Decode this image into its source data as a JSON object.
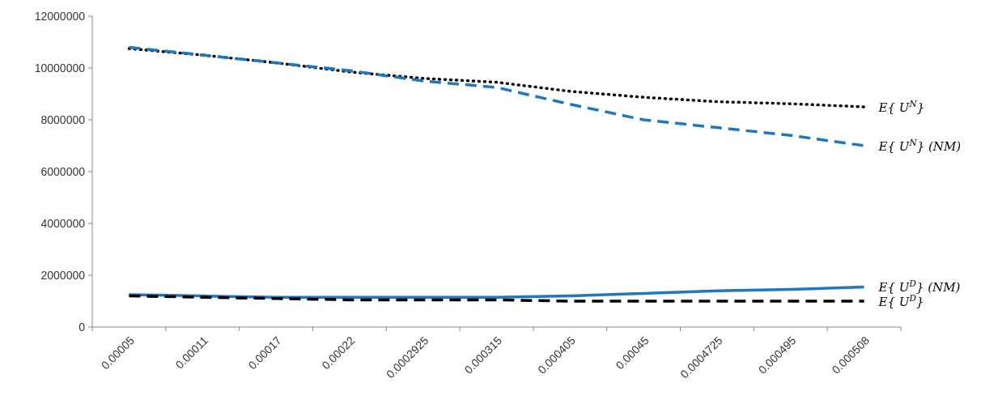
{
  "chart_data": {
    "type": "line",
    "categories": [
      "0.00005",
      "0.00011",
      "0.00017",
      "0.00022",
      "0.0002925",
      "0.000315",
      "0.000405",
      "0.00045",
      "0.0004725",
      "0.000495",
      "0.000508"
    ],
    "ylim": [
      0,
      12000000
    ],
    "yticks": [
      0,
      2000000,
      4000000,
      6000000,
      8000000,
      10000000,
      12000000
    ],
    "grid": false,
    "legend": false,
    "series": [
      {
        "name": "E{ U$^{N}$}",
        "color": "#000000",
        "line_style": "dotted",
        "values": [
          10750000,
          10500000,
          10200000,
          9850000,
          9600000,
          9450000,
          9100000,
          8870000,
          8700000,
          8620000,
          8500000
        ]
      },
      {
        "name": "E{ U$^{N}$} (NM)",
        "color": "#1f77c0",
        "line_style": "dashed",
        "values": [
          10800000,
          10500000,
          10200000,
          9900000,
          9500000,
          9250000,
          8600000,
          8000000,
          7700000,
          7400000,
          7000000
        ]
      },
      {
        "name": "E{ U$^{D}$} (NM)",
        "color": "#1f77c0",
        "line_style": "solid",
        "values": [
          1250000,
          1200000,
          1150000,
          1150000,
          1150000,
          1150000,
          1200000,
          1300000,
          1400000,
          1450000,
          1550000
        ]
      },
      {
        "name": "E{ U$^{D}$}",
        "color": "#000000",
        "line_style": "dashed",
        "values": [
          1200000,
          1150000,
          1100000,
          1050000,
          1050000,
          1050000,
          1000000,
          1000000,
          1000000,
          1000000,
          1000000
        ]
      }
    ]
  }
}
